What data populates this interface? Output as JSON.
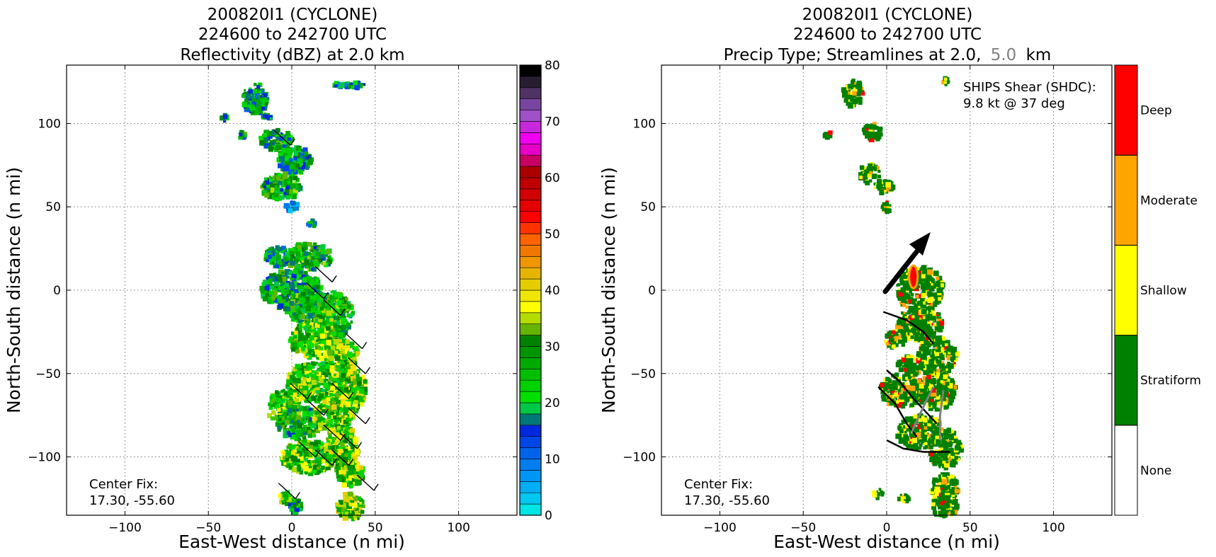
{
  "chart_data": [
    {
      "type": "heatmap",
      "title_lines": [
        "200820I1 (CYCLONE)",
        "224600 to 242700 UTC",
        "Reflectivity (dBZ) at 2.0 km"
      ],
      "xlabel": "East-West distance (n mi)",
      "ylabel": "North-South distance (n mi)",
      "xlim": [
        -135,
        135
      ],
      "ylim": [
        -135,
        135
      ],
      "xticks": [
        -100,
        -50,
        0,
        50,
        100
      ],
      "yticks": [
        -100,
        -50,
        0,
        50,
        100
      ],
      "xtick_labels": [
        "−100",
        "−50",
        "0",
        "50",
        "100"
      ],
      "ytick_labels": [
        "−100",
        "−50",
        "0",
        "50",
        "100"
      ],
      "grid": true,
      "annotation_lines": [
        "Center Fix:",
        "17.30, -55.60"
      ],
      "colorbar": {
        "range": [
          0,
          80
        ],
        "ticks": [
          0,
          10,
          20,
          30,
          40,
          50,
          60,
          70,
          80
        ],
        "colors": [
          "#00e5e5",
          "#00c8f0",
          "#00aef5",
          "#0096f5",
          "#007ef0",
          "#0064eb",
          "#0046e6",
          "#0028dc",
          "#007878",
          "#00c846",
          "#00e000",
          "#00d200",
          "#00be00",
          "#00aa00",
          "#009600",
          "#008200",
          "#64b400",
          "#b4dc00",
          "#ffff00",
          "#f0e600",
          "#e6cd00",
          "#e6b400",
          "#f09600",
          "#f07800",
          "#ff6400",
          "#ff3200",
          "#ff0000",
          "#e60000",
          "#d20000",
          "#be0000",
          "#aa0000",
          "#c80064",
          "#e600c8",
          "#f000f0",
          "#c828dc",
          "#a050c8",
          "#7846a0",
          "#503264",
          "#281e32",
          "#000000"
        ]
      },
      "wind_barbs_present": true
    },
    {
      "type": "heatmap",
      "title_lines": [
        "200820I1 (CYCLONE)",
        "224600 to 242700 UTC"
      ],
      "title_line3_prefix": "Precip Type; Streamlines at 2.0,",
      "title_line3_gray": "5.0",
      "title_line3_suffix": "km",
      "xlabel": "East-West distance (n mi)",
      "ylabel": "North-South distance (n mi)",
      "xlim": [
        -135,
        135
      ],
      "ylim": [
        -135,
        135
      ],
      "xticks": [
        -100,
        -50,
        0,
        50,
        100
      ],
      "yticks": [
        -100,
        -50,
        0,
        50,
        100
      ],
      "xtick_labels": [
        "−100",
        "−50",
        "0",
        "50",
        "100"
      ],
      "ytick_labels": [
        "−100",
        "−50",
        "0",
        "50",
        "100"
      ],
      "grid": true,
      "annotation_lines": [
        "Center Fix:",
        "17.30, -55.60"
      ],
      "shear_text_lines": [
        "SHIPS Shear (SHDC):",
        "9.8 kt @ 37 deg"
      ],
      "shear": {
        "speed_kt": 9.8,
        "direction_deg": 37
      },
      "categories": [
        "None",
        "Stratiform",
        "Shallow",
        "Moderate",
        "Deep"
      ],
      "category_colors": [
        "#ffffff",
        "#008000",
        "#ffff00",
        "#ffa500",
        "#ff0000"
      ],
      "streamline_colors": {
        "2.0 km": "#000000",
        "5.0 km": "#808080"
      }
    }
  ],
  "colors": {
    "accent_gray": "#808080",
    "grid": "#777777"
  }
}
